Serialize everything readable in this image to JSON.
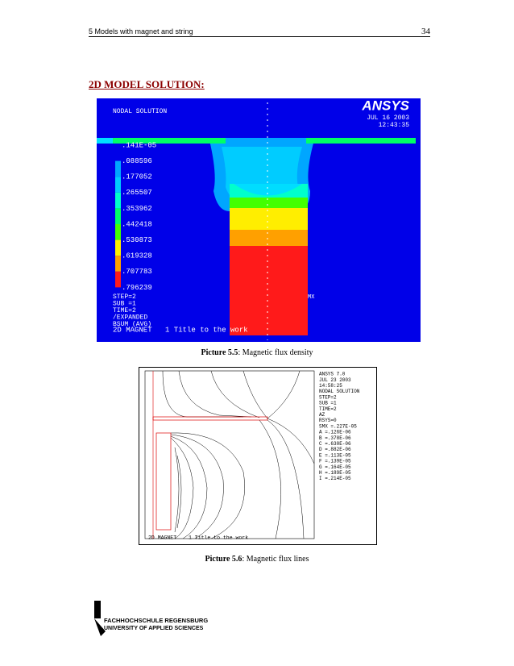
{
  "header": {
    "chapter": "5    Models with magnet and string",
    "page": "34"
  },
  "section_title": "2D MODEL SOLUTION:",
  "figure1": {
    "title": "NODAL SOLUTION",
    "logo": "ANSYS",
    "date": "JUL 16 2003",
    "time": "12:43:35",
    "legend": [
      ".141E-05",
      ".088596",
      ".177052",
      ".265507",
      ".353962",
      ".442418",
      ".530873",
      ".619328",
      ".707783",
      ".796239"
    ],
    "info": [
      "STEP=2",
      "SUB =1",
      "TIME=2",
      "/EXPANDED",
      "BSUM     (AVG)"
    ],
    "mx": "MX",
    "model": "2D MAGNET",
    "work": "1 Title to the work",
    "caption_label": "Picture 5.5",
    "caption_text": ": Magnetic flux density"
  },
  "figure2": {
    "info": [
      "ANSYS 7.0",
      "JUL 23 2003",
      "14:58:25",
      "NODAL SOLUTION",
      "STEP=2",
      "SUB =1",
      "TIME=2",
      "AZ",
      "RSYS=0",
      "SMX =.227E-05",
      "A    =.126E-06",
      "B    =.378E-06",
      "C    =.630E-06",
      "D    =.882E-06",
      "E    =.113E-05",
      "F    =.139E-05",
      "G    =.164E-05",
      "H    =.189E-05",
      "I    =.214E-05"
    ],
    "model": "2D MAGNET",
    "work": "1 Title to the work",
    "caption_label": "Picture 5.6",
    "caption_text": ": Magnetic flux lines"
  },
  "logo": {
    "line1": "FACHHOCHSCHULE REGENSBURG",
    "line2": "UNIVERSITY OF APPLIED SCIENCES"
  }
}
